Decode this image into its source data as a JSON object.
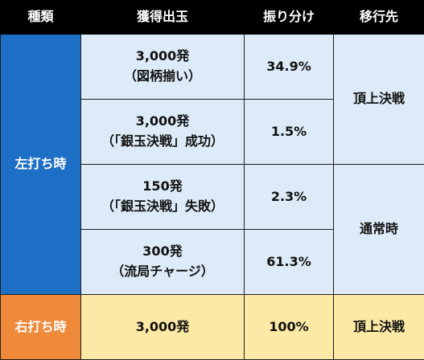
{
  "header": {
    "col_type": "種類",
    "col_payout": "獲得出玉",
    "col_ratio": "振り分け",
    "col_dest": "移行先"
  },
  "left": {
    "label": "左打ち時",
    "rows": [
      {
        "payout": "3,000発",
        "detail": "（図柄揃い）",
        "ratio": "34.9%"
      },
      {
        "payout": "3,000発",
        "detail": "（「銀玉決戦」成功）",
        "ratio": "1.5%"
      },
      {
        "payout": "150発",
        "detail": "（「銀玉決戦」失敗）",
        "ratio": "2.3%"
      },
      {
        "payout": "300発",
        "detail": "（流局チャージ）",
        "ratio": "61.3%"
      }
    ],
    "dest_top": "頂上決戦",
    "dest_bottom": "通常時"
  },
  "right": {
    "label": "右打ち時",
    "payout": "3,000発",
    "ratio": "100%",
    "dest": "頂上決戦"
  },
  "colors": {
    "header_bg": "#000000",
    "left_label_bg": "#1e6fc6",
    "right_label_bg": "#ee8a3a",
    "left_cell_bg": "#dcebf7",
    "right_cell_bg": "#fde9a6"
  }
}
